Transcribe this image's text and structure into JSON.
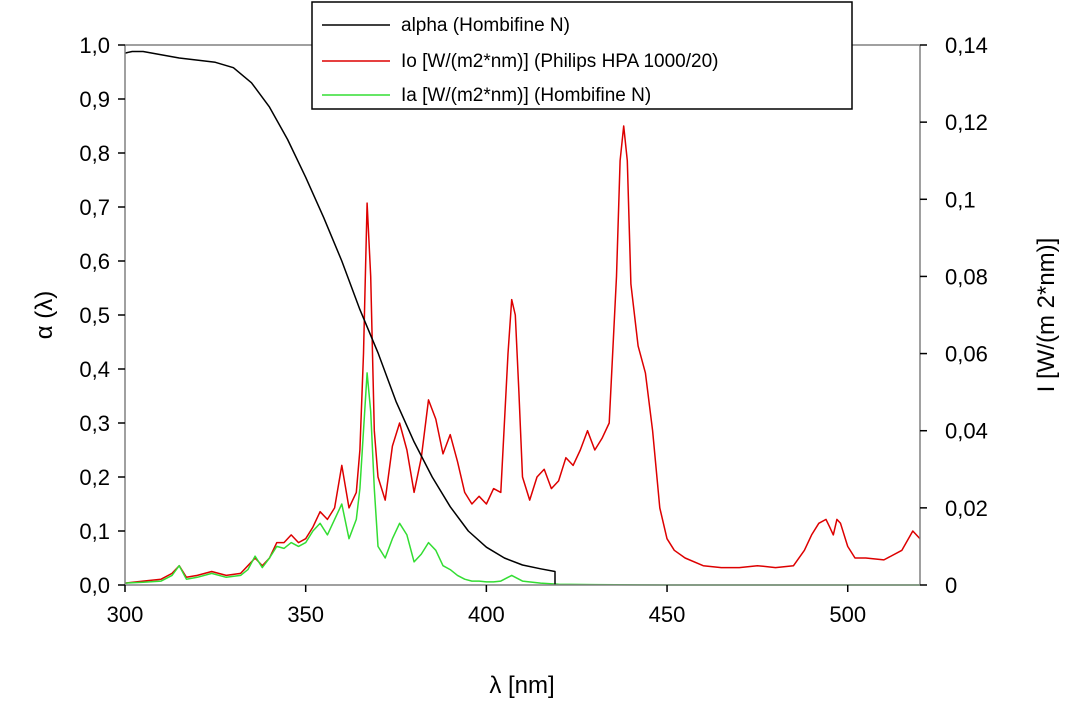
{
  "chart_data": {
    "type": "line",
    "xlabel": "λ [nm]",
    "ylabel_left": "α (λ)",
    "ylabel_right": "I [W/(m 2*nm)]",
    "xlim": [
      300,
      520
    ],
    "ylim_left": [
      0,
      1.0
    ],
    "ylim_right": [
      0,
      0.14
    ],
    "x_ticks": [
      "300",
      "350",
      "400",
      "450",
      "500"
    ],
    "x_tick_values": [
      300,
      350,
      400,
      450,
      500
    ],
    "y_left_ticks": [
      "0,0",
      "0,1",
      "0,2",
      "0,3",
      "0,4",
      "0,5",
      "0,6",
      "0,7",
      "0,8",
      "0,9",
      "1,0"
    ],
    "y_left_tick_values": [
      0,
      0.1,
      0.2,
      0.3,
      0.4,
      0.5,
      0.6,
      0.7,
      0.8,
      0.9,
      1.0
    ],
    "y_right_ticks": [
      "0",
      "0,02",
      "0,04",
      "0,06",
      "0,08",
      "0,1",
      "0,12",
      "0,14"
    ],
    "y_right_tick_values": [
      0,
      0.02,
      0.04,
      0.06,
      0.08,
      0.1,
      0.12,
      0.14
    ],
    "grid": false,
    "legend_position": "top-center",
    "series": [
      {
        "name": "alpha (Hombifine N)",
        "axis": "left",
        "color": "#000000",
        "x": [
          300,
          302,
          305,
          310,
          315,
          320,
          325,
          330,
          335,
          340,
          345,
          350,
          355,
          360,
          365,
          370,
          375,
          380,
          385,
          390,
          395,
          400,
          405,
          410,
          415,
          419,
          420
        ],
        "y": [
          0.985,
          0.988,
          0.988,
          0.982,
          0.976,
          0.972,
          0.968,
          0.958,
          0.93,
          0.885,
          0.825,
          0.755,
          0.68,
          0.6,
          0.51,
          0.43,
          0.34,
          0.265,
          0.2,
          0.145,
          0.1,
          0.07,
          0.05,
          0.037,
          0.03,
          0.025,
          0.0
        ]
      },
      {
        "name": "Io [W/(m2*nm)] (Philips HPA 1000/20)",
        "axis": "right",
        "color": "#dd0000",
        "x": [
          300,
          305,
          310,
          313,
          315,
          317,
          320,
          324,
          328,
          332,
          334,
          336,
          338,
          340,
          342,
          344,
          346,
          348,
          350,
          352,
          354,
          356,
          358,
          360,
          362,
          364,
          365,
          366,
          367,
          368,
          369,
          370,
          372,
          374,
          376,
          378,
          380,
          382,
          384,
          386,
          388,
          390,
          392,
          394,
          396,
          398,
          400,
          402,
          404,
          406,
          407,
          408,
          409,
          410,
          412,
          414,
          416,
          418,
          420,
          422,
          424,
          426,
          428,
          430,
          432,
          434,
          436,
          437,
          438,
          439,
          440,
          442,
          444,
          446,
          448,
          450,
          452,
          455,
          460,
          465,
          470,
          475,
          480,
          485,
          488,
          490,
          492,
          494,
          495,
          496,
          497,
          498,
          500,
          502,
          505,
          510,
          515,
          518,
          520
        ],
        "y": [
          0.0005,
          0.001,
          0.0015,
          0.003,
          0.005,
          0.002,
          0.0025,
          0.0035,
          0.0025,
          0.003,
          0.005,
          0.007,
          0.005,
          0.007,
          0.011,
          0.011,
          0.013,
          0.011,
          0.012,
          0.015,
          0.019,
          0.017,
          0.02,
          0.031,
          0.02,
          0.024,
          0.035,
          0.06,
          0.099,
          0.08,
          0.04,
          0.028,
          0.022,
          0.036,
          0.042,
          0.035,
          0.024,
          0.033,
          0.048,
          0.043,
          0.034,
          0.039,
          0.032,
          0.024,
          0.021,
          0.023,
          0.021,
          0.025,
          0.024,
          0.06,
          0.074,
          0.07,
          0.05,
          0.028,
          0.022,
          0.028,
          0.03,
          0.025,
          0.027,
          0.033,
          0.031,
          0.035,
          0.04,
          0.035,
          0.038,
          0.042,
          0.08,
          0.11,
          0.119,
          0.11,
          0.078,
          0.062,
          0.055,
          0.04,
          0.02,
          0.012,
          0.009,
          0.007,
          0.005,
          0.0045,
          0.0045,
          0.005,
          0.0045,
          0.005,
          0.009,
          0.013,
          0.016,
          0.017,
          0.015,
          0.013,
          0.017,
          0.016,
          0.01,
          0.007,
          0.007,
          0.0065,
          0.009,
          0.014,
          0.012
        ]
      },
      {
        "name": "Ia [W/(m2*nm)] (Hombifine N)",
        "axis": "right",
        "color": "#33dd33",
        "x": [
          300,
          305,
          310,
          313,
          315,
          317,
          320,
          324,
          328,
          332,
          334,
          336,
          338,
          340,
          342,
          344,
          346,
          348,
          350,
          352,
          354,
          356,
          358,
          360,
          362,
          364,
          365,
          366,
          367,
          368,
          369,
          370,
          372,
          374,
          376,
          378,
          380,
          382,
          384,
          386,
          388,
          390,
          392,
          394,
          396,
          398,
          400,
          402,
          404,
          406,
          407,
          408,
          410,
          415,
          420,
          430,
          450,
          480,
          520
        ],
        "y": [
          0.0005,
          0.0007,
          0.001,
          0.0025,
          0.005,
          0.0015,
          0.002,
          0.003,
          0.002,
          0.0025,
          0.004,
          0.0075,
          0.0045,
          0.007,
          0.01,
          0.0095,
          0.011,
          0.01,
          0.011,
          0.014,
          0.016,
          0.013,
          0.017,
          0.021,
          0.012,
          0.017,
          0.025,
          0.04,
          0.055,
          0.045,
          0.025,
          0.01,
          0.007,
          0.012,
          0.016,
          0.013,
          0.006,
          0.008,
          0.011,
          0.009,
          0.005,
          0.004,
          0.0025,
          0.0015,
          0.001,
          0.001,
          0.0008,
          0.0008,
          0.001,
          0.002,
          0.0025,
          0.002,
          0.001,
          0.0005,
          0.0002,
          0.0001,
          0.0,
          0.0,
          0.0
        ]
      }
    ]
  }
}
